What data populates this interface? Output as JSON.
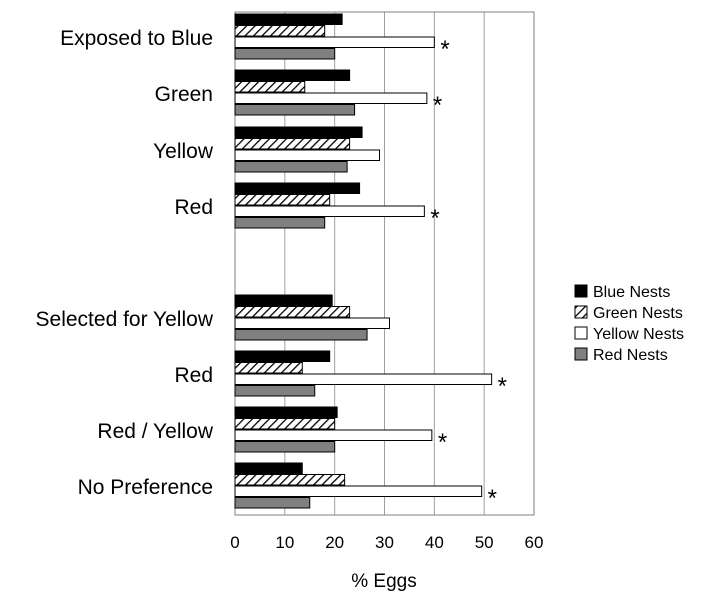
{
  "chart_data": {
    "type": "bar",
    "orientation": "horizontal",
    "xlabel": "% Eggs",
    "xlim": [
      0,
      60
    ],
    "xticks": [
      0,
      10,
      20,
      30,
      40,
      50,
      60
    ],
    "grid": "vertical gridlines",
    "legend_position": "right",
    "categories": [
      "Exposed to Blue",
      "Green",
      "Yellow",
      "Red",
      "Selected for Yellow",
      "Red",
      "Red / Yellow",
      "No Preference"
    ],
    "series": [
      {
        "name": "Blue Nests",
        "fill": "solid-black",
        "values": [
          21.5,
          23,
          25.5,
          25,
          19.5,
          19,
          20.5,
          13.5
        ]
      },
      {
        "name": "Green Nests",
        "fill": "hatched",
        "values": [
          18,
          14,
          23,
          19,
          23,
          13.5,
          20,
          22
        ]
      },
      {
        "name": "Yellow Nests",
        "fill": "white",
        "values": [
          40,
          38.5,
          29,
          38,
          31,
          51.5,
          39.5,
          49.5
        ]
      },
      {
        "name": "Red Nests",
        "fill": "gray",
        "values": [
          20,
          24,
          22.5,
          18,
          26.5,
          16,
          20,
          15
        ]
      }
    ],
    "significance_marker": "*",
    "significant": [
      true,
      true,
      false,
      true,
      false,
      true,
      true,
      true
    ]
  },
  "colors": {
    "blue_nests": "#000000",
    "green_nests_hatch": "#000000",
    "yellow_nests": "#ffffff",
    "red_nests": "#808080",
    "gridline": "#a0a0a0"
  }
}
